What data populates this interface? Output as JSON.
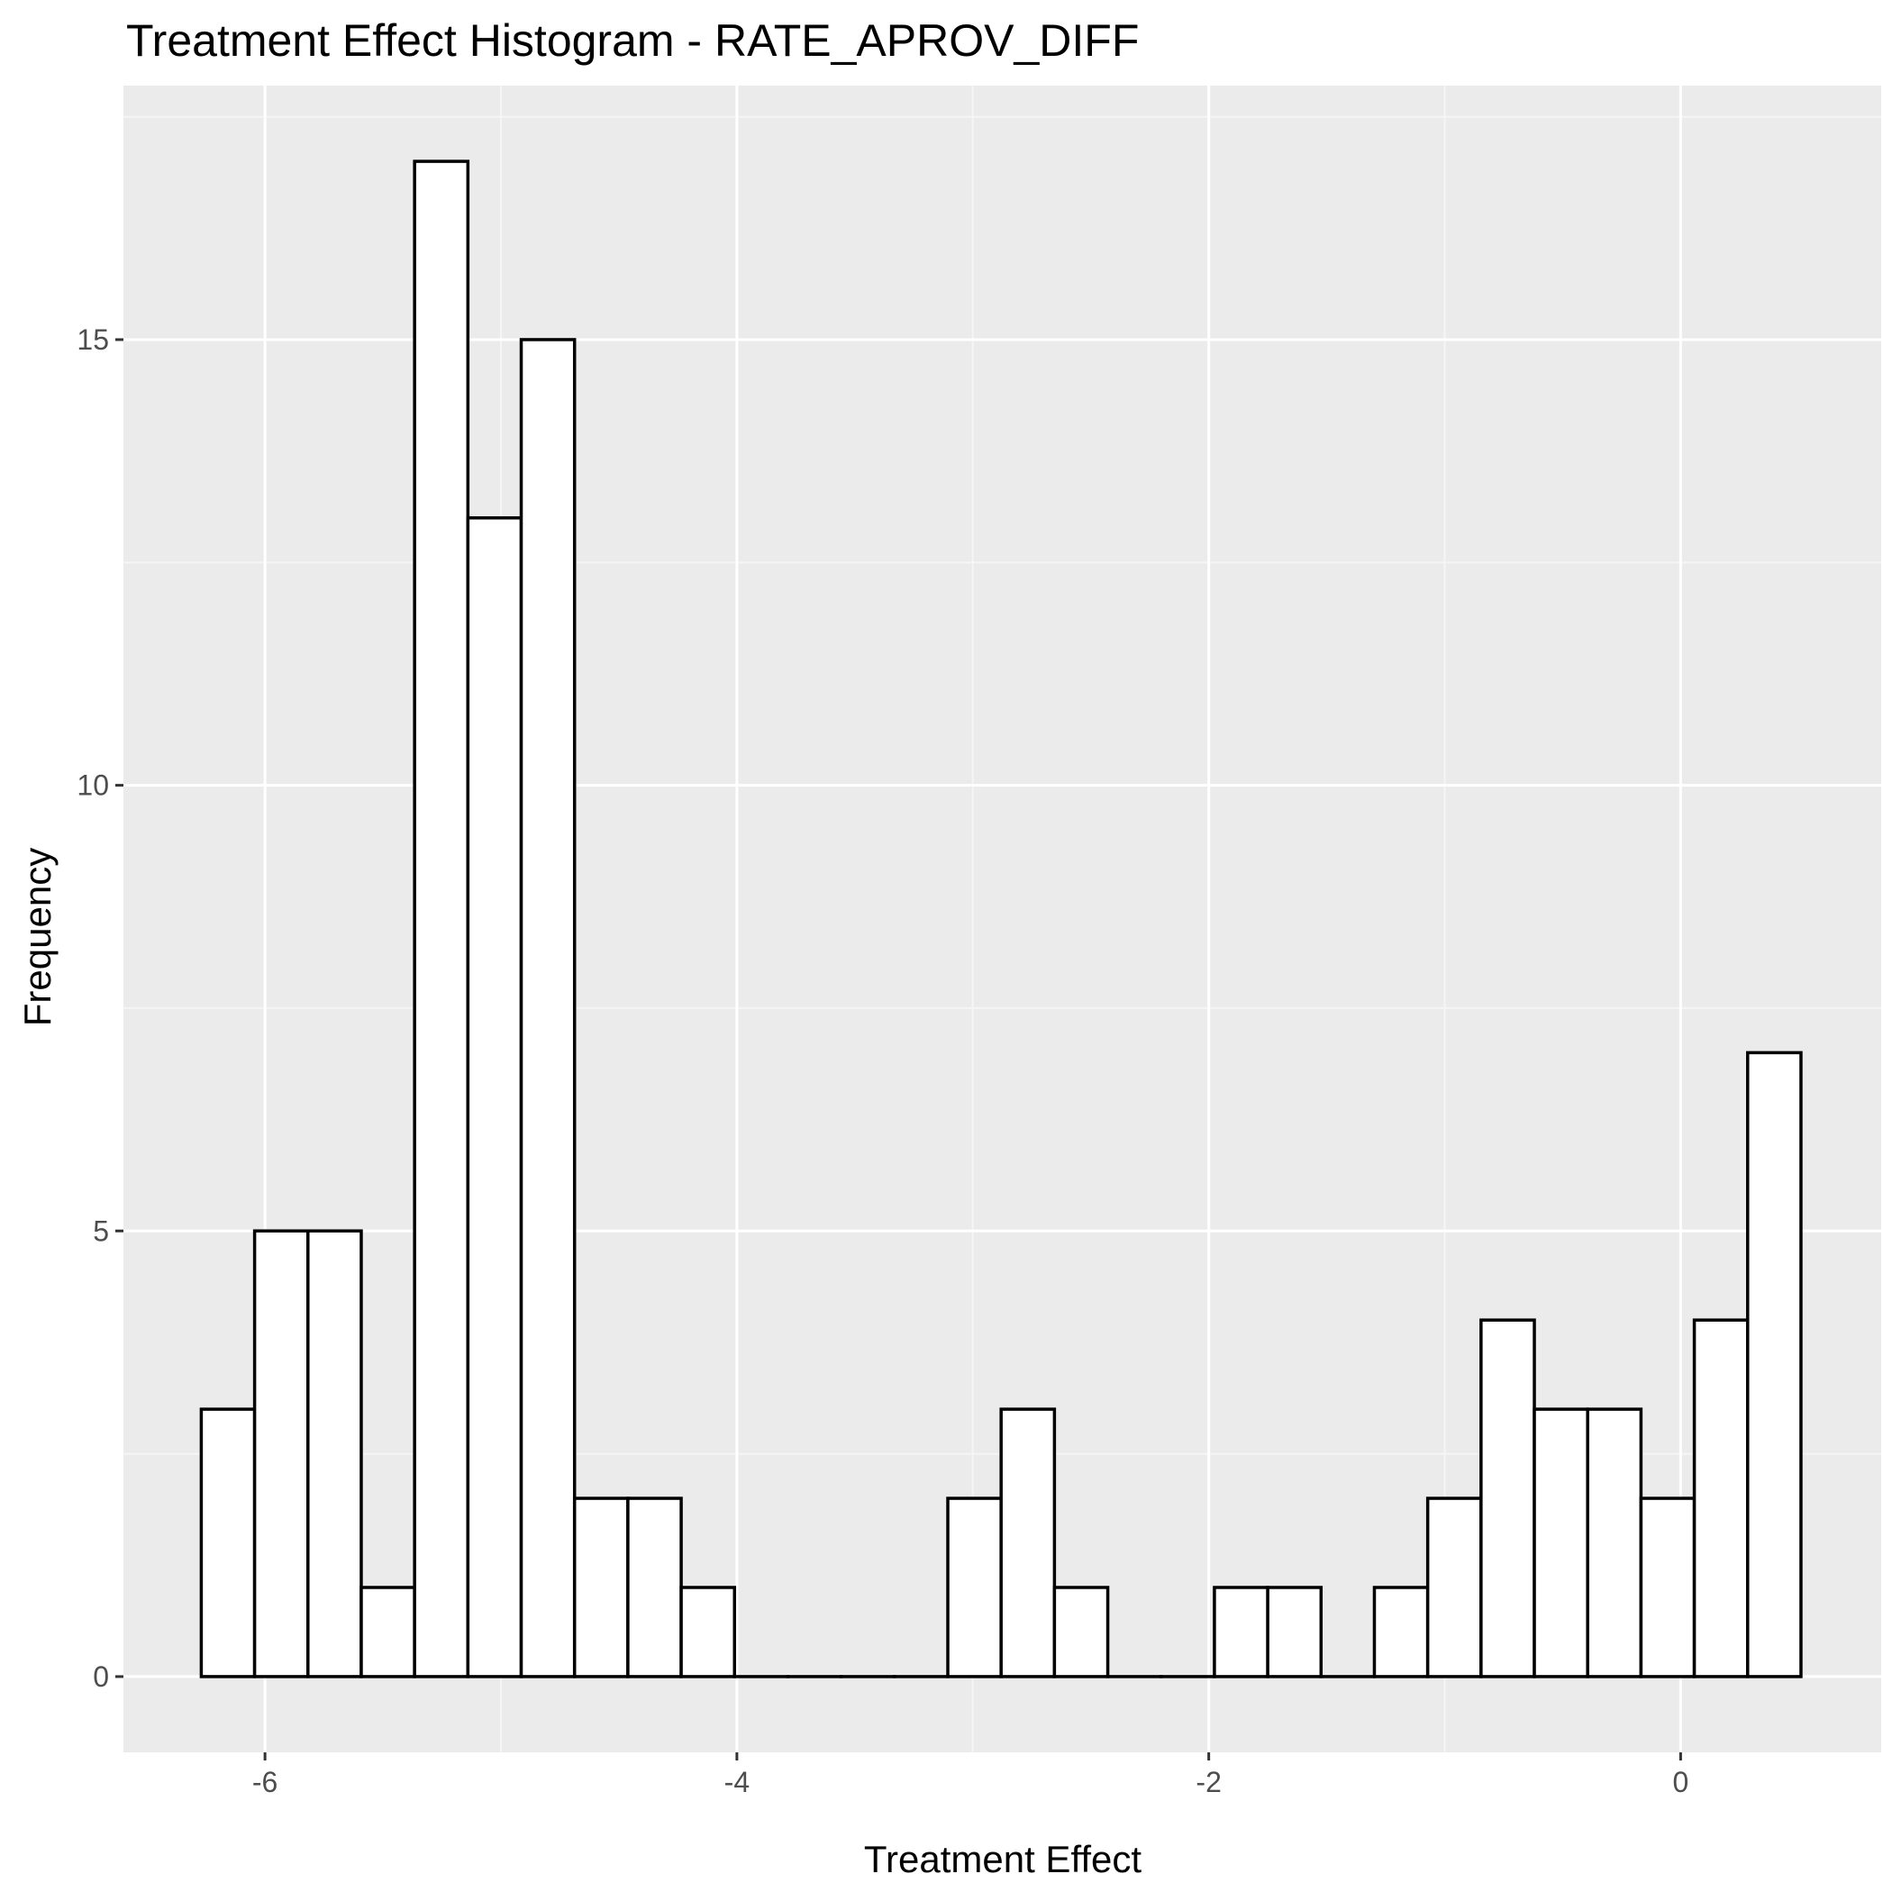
{
  "chart_data": {
    "type": "bar",
    "title": "Treatment Effect Histogram -  RATE_APROV_DIFF",
    "xlabel": "Treatment Effect",
    "ylabel": "Frequency",
    "xlim": [
      -6.6,
      0.85
    ],
    "ylim": [
      -0.85,
      17.85
    ],
    "x_ticks": [
      -6,
      -4,
      -2,
      0
    ],
    "x_tick_labels": [
      "-6",
      "-4",
      "-2",
      "0"
    ],
    "y_ticks": [
      0,
      5,
      10,
      15
    ],
    "y_tick_labels": [
      "0",
      "5",
      "10",
      "15"
    ],
    "bin_start": -6.27,
    "bin_width": 0.226,
    "values": [
      3,
      5,
      5,
      1,
      17,
      13,
      15,
      2,
      2,
      1,
      0,
      0,
      0,
      0,
      2,
      3,
      1,
      0,
      0,
      1,
      1,
      0,
      1,
      2,
      4,
      3,
      3,
      2,
      4,
      7
    ],
    "grid": true,
    "colors": {
      "panel_background": "#ebebeb",
      "grid_major": "#ffffff",
      "grid_minor": "#f5f5f5",
      "bar_fill": "#ffffff",
      "bar_outline": "#000000",
      "tick_text": "#4d4d4d"
    }
  }
}
